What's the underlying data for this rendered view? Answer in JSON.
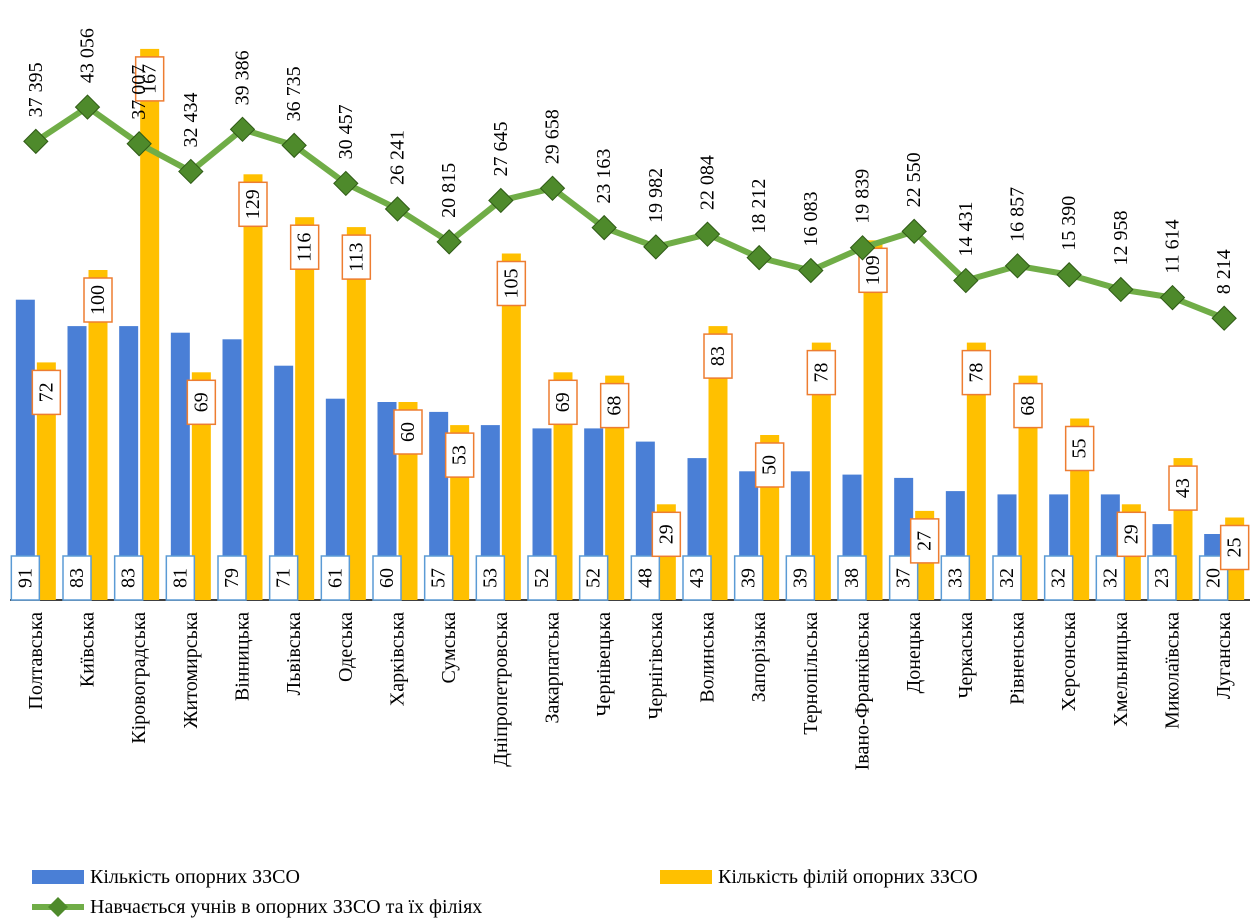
{
  "chart_data": {
    "type": "bar-line",
    "categories": [
      "Полтавська",
      "Київська",
      "Кіровоградська",
      "Житомирська",
      "Вінницька",
      "Львівська",
      "Одеська",
      "Харківська",
      "Сумська",
      "Дніпропетровська",
      "Закарпатська",
      "Чернівецька",
      "Чернігівська",
      "Волинська",
      "Запорізька",
      "Тернопільська",
      "Івано-Франківська",
      "Донецька",
      "Черкаська",
      "Рівненська",
      "Херсонська",
      "Хмельницька",
      "Миколаївська",
      "Луганська"
    ],
    "series": [
      {
        "name": "Кількість опорних ЗЗСО",
        "color": "#4a7fd6",
        "type": "bar",
        "values": [
          91,
          83,
          83,
          81,
          79,
          71,
          61,
          60,
          57,
          53,
          52,
          52,
          48,
          43,
          39,
          39,
          38,
          37,
          33,
          32,
          32,
          32,
          23,
          20
        ]
      },
      {
        "name": "Кількість філій опорних ЗЗСО",
        "color": "#ffc000",
        "type": "bar",
        "values": [
          72,
          100,
          167,
          69,
          129,
          116,
          113,
          60,
          53,
          105,
          69,
          68,
          29,
          83,
          50,
          78,
          109,
          27,
          78,
          68,
          55,
          29,
          43,
          25
        ]
      },
      {
        "name": "Навчається учнів в опорних ЗЗСО та їх філіях",
        "color": "#70ad47",
        "type": "line",
        "axis": "y2",
        "values": [
          37395,
          43056,
          37007,
          32434,
          39386,
          36735,
          30457,
          26241,
          20815,
          27645,
          29658,
          23163,
          19982,
          22084,
          18212,
          16083,
          19839,
          22550,
          14431,
          16857,
          15390,
          12958,
          11614,
          8214
        ],
        "value_labels": [
          "37 395",
          "43 056",
          "37 007",
          "32 434",
          "39 386",
          "36 735",
          "30 457",
          "26 241",
          "20 815",
          "27 645",
          "29 658",
          "23 163",
          "19 982",
          "22 084",
          "18 212",
          "16 083",
          "19 839",
          "22 550",
          "14 431",
          "16 857",
          "15 390",
          "12 958",
          "11 614",
          "8 214"
        ]
      }
    ],
    "ylim": [
      0,
      170
    ],
    "y2lim": [
      0,
      50000
    ],
    "legend": "bottom"
  }
}
